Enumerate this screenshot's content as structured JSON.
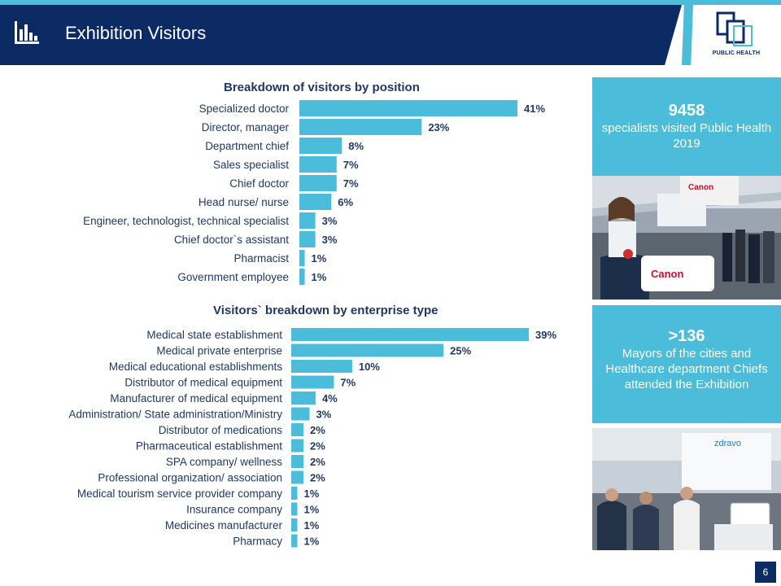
{
  "header": {
    "title": "Exhibition Visitors",
    "icon": "bar-chart-icon",
    "logo_text": "PUBLIC HEALTH",
    "accent_color": "#4bbcd9",
    "brand_color": "#0c2a64"
  },
  "chart_data": [
    {
      "type": "bar",
      "orientation": "horizontal",
      "title": "Breakdown of visitors by position",
      "categories": [
        "Specialized doctor",
        "Director, manager",
        "Department chief",
        "Sales specialist",
        "Chief doctor",
        "Head nurse/ nurse",
        "Engineer, technologist, technical specialist",
        "Chief doctor`s assistant",
        "Pharmacist",
        "Government employee"
      ],
      "values": [
        41,
        23,
        8,
        7,
        7,
        6,
        3,
        3,
        1,
        1
      ],
      "value_labels": [
        "41%",
        "23%",
        "8%",
        "7%",
        "7%",
        "6%",
        "3%",
        "3%",
        "1%",
        "1%"
      ],
      "unit": "%",
      "xlim": [
        0,
        41
      ],
      "bar_color": "#4bbcd9",
      "grid": false,
      "legend": "none"
    },
    {
      "type": "bar",
      "orientation": "horizontal",
      "title": "Visitors` breakdown by enterprise type",
      "categories": [
        "Medical state establishment",
        "Medical private enterprise",
        "Medical educational establishments",
        "Distributor of medical equipment",
        "Manufacturer of medical equipment",
        "Administration/ State administration/Ministry",
        "Distributor of medications",
        "Pharmaceutical establishment",
        "SPA company/ wellness",
        "Professional organization/ association",
        "Medical tourism service provider company",
        "Insurance company",
        "Medicines manufacturer",
        "Pharmacy"
      ],
      "values": [
        39,
        25,
        10,
        7,
        4,
        3,
        2,
        2,
        2,
        2,
        1,
        1,
        1,
        1
      ],
      "value_labels": [
        "39%",
        "25%",
        "10%",
        "7%",
        "4%",
        "3%",
        "2%",
        "2%",
        "2%",
        "2%",
        "1%",
        "1%",
        "1%",
        "1%"
      ],
      "unit": "%",
      "xlim": [
        0,
        39
      ],
      "bar_color": "#4bbcd9",
      "grid": false,
      "legend": "none"
    }
  ],
  "stats": [
    {
      "number": "9458",
      "text": "specialists visited Public Health 2019"
    },
    {
      "number": ">136",
      "text": "Mayors of the cities and Healthcare department Chiefs attended the Exhibition"
    }
  ],
  "photos": [
    {
      "signage": "Canon"
    },
    {
      "signage": "zdravo"
    }
  ],
  "page_number": "6"
}
